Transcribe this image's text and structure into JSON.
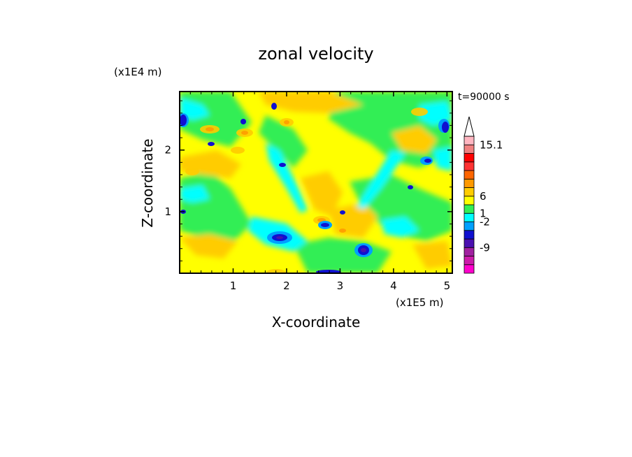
{
  "chart_data": {
    "type": "heatmap",
    "title": "zonal velocity",
    "time_label": "t=90000 s",
    "xlabel": "X-coordinate",
    "ylabel": "Z-coordinate",
    "x_scale_label": "(x1E5 m)",
    "y_scale_label": "(x1E4 m)",
    "xlim": [
      0,
      5.1
    ],
    "ylim": [
      0,
      2.95
    ],
    "x_ticks": [
      "1",
      "2",
      "3",
      "4",
      "5"
    ],
    "y_ticks": [
      "1",
      "2"
    ],
    "colorbar": {
      "labels": [
        "15.1",
        "6",
        "1",
        "-2",
        "-9"
      ],
      "colors": [
        "#ff00cc",
        "#cc1aaa",
        "#a020a0",
        "#4a10b0",
        "#1010d0",
        "#00a0ff",
        "#00ffff",
        "#33ee55",
        "#ffff00",
        "#ffcc00",
        "#ff9900",
        "#ff6600",
        "#ff3333",
        "#ff0000",
        "#f08080",
        "#ffb6c1"
      ],
      "extend_max": true
    }
  }
}
